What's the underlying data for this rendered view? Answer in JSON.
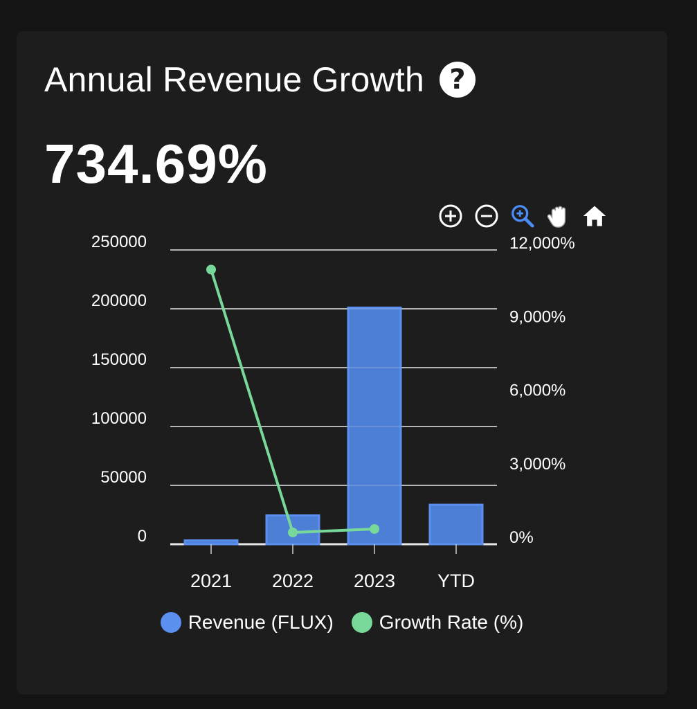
{
  "card": {
    "title": "Annual Revenue Growth",
    "value": "734.69%"
  },
  "toolbar": {
    "items": [
      "zoom-in",
      "zoom-out",
      "zoom-select",
      "pan",
      "reset-home"
    ]
  },
  "colors": {
    "revenue": "#5b8ff0",
    "revenue_fill": "#4d7fd6",
    "growth": "#77d89a",
    "grid": "#e8e8e8",
    "accent": "#4c8cf5"
  },
  "chart_data": {
    "type": "bar",
    "categories": [
      "2021",
      "2022",
      "2023",
      "YTD"
    ],
    "series": [
      {
        "name": "Revenue (FLUX)",
        "type": "bar",
        "axis": "left",
        "values": [
          3200,
          24500,
          201000,
          33500
        ]
      },
      {
        "name": "Growth Rate (%)",
        "type": "line",
        "axis": "right",
        "values": [
          11200,
          480,
          620,
          null
        ]
      }
    ],
    "left_axis": {
      "min": 0,
      "max": 250000,
      "ticks": [
        "250000",
        "200000",
        "150000",
        "100000",
        "50000",
        "0"
      ]
    },
    "right_axis": {
      "min": 0,
      "max": 12000,
      "ticks": [
        "12,000%",
        "9,000%",
        "6,000%",
        "3,000%",
        "0%"
      ]
    },
    "legend": [
      "Revenue (FLUX)",
      "Growth Rate (%)"
    ],
    "legend_position": "bottom"
  }
}
